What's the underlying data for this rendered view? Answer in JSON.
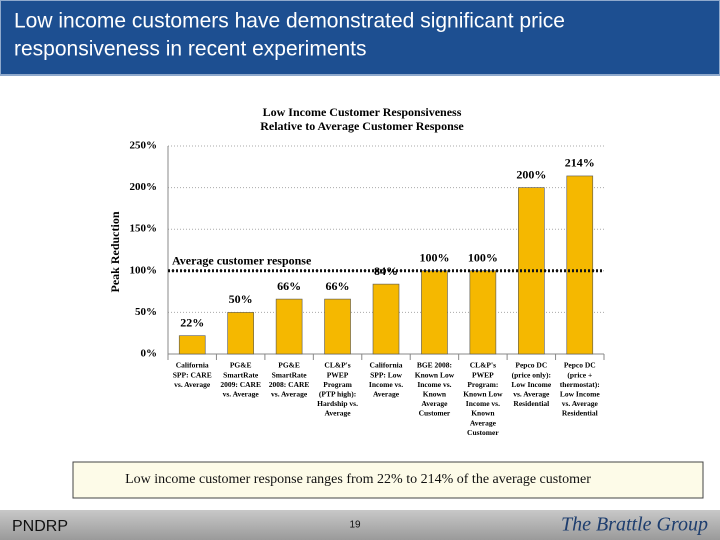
{
  "header": {
    "title": [
      "Low income customers have demonstrated significant price",
      "responsiveness in recent experiments"
    ]
  },
  "chart_data": {
    "type": "bar",
    "title": [
      "Low Income Customer Responsiveness",
      "Relative to Average Customer Response"
    ],
    "y_label": "Peak Reduction",
    "categories": [
      [
        "California",
        "SPP: CARE",
        "vs. Average"
      ],
      [
        "PG&E",
        "SmartRate",
        "2009: CARE",
        "vs. Average"
      ],
      [
        "PG&E",
        "SmartRate",
        "2008: CARE",
        "vs. Average"
      ],
      [
        "CL&P's",
        "PWEP",
        "Program",
        "(PTP high):",
        "Hardship vs.",
        "Average"
      ],
      [
        "California",
        "SPP: Low",
        "Income vs.",
        "Average"
      ],
      [
        "BGE 2008:",
        "Known Low",
        "Income vs.",
        "Known",
        "Average",
        "Customer"
      ],
      [
        "CL&P's",
        "PWEP",
        "Program:",
        "Known Low",
        "Income vs.",
        "Known",
        "Average",
        "Customer"
      ],
      [
        "Pepco DC",
        "(price only):",
        "Low Income",
        "vs. Average",
        "Residential"
      ],
      [
        "Pepco DC",
        "(price +",
        "thermostat):",
        "Low Income",
        "vs. Average",
        "Residential"
      ]
    ],
    "values": [
      22,
      50,
      66,
      66,
      84,
      100,
      100,
      200,
      214
    ],
    "value_labels": [
      "22%",
      "50%",
      "66%",
      "66%",
      "84%",
      "100%",
      "100%",
      "200%",
      "214%"
    ],
    "color": "#f5b800",
    "ylim": [
      0,
      250
    ],
    "yticks": [
      {
        "value": 0,
        "label": "0%"
      },
      {
        "value": 50,
        "label": "50%"
      },
      {
        "value": 100,
        "label": "100%"
      },
      {
        "value": 150,
        "label": "150%"
      },
      {
        "value": 200,
        "label": "200%"
      },
      {
        "value": 250,
        "label": "250%"
      }
    ],
    "grid": true,
    "reference_line": {
      "value": 100,
      "label": "Average customer response"
    }
  },
  "note": "Low income customer response ranges from 22% to 214% of the average customer",
  "footer": {
    "left": "PNDRP",
    "page": "19",
    "logo": "The Brattle Group"
  }
}
